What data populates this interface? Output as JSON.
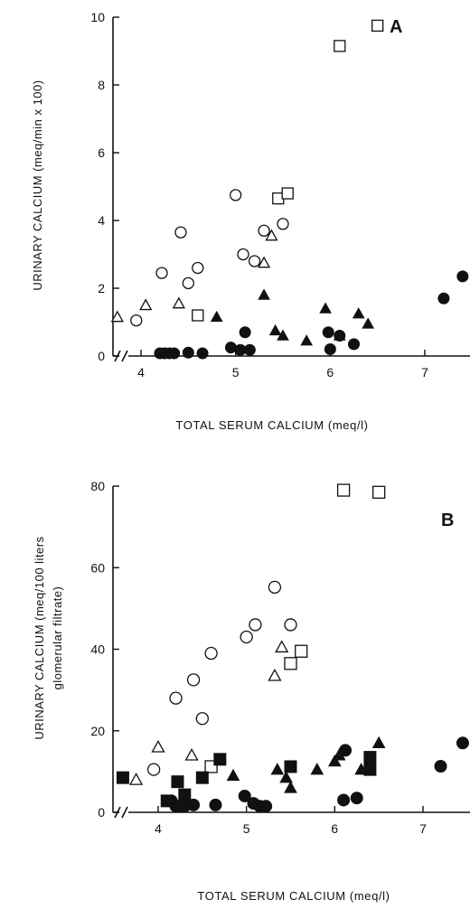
{
  "chart_data": [
    {
      "type": "scatter",
      "panel_label": "A",
      "xlabel": "TOTAL SERUM CALCIUM (meq/l)",
      "ylabel": "URINARY CALCIUM (meq/min x 100)",
      "xlim": [
        3.6,
        7.6
      ],
      "ylim": [
        0,
        10
      ],
      "xticks": [
        4,
        5,
        6,
        7
      ],
      "yticks": [
        0,
        2,
        4,
        6,
        8,
        10
      ],
      "axis_break": "x",
      "grid": false,
      "series": [
        {
          "marker": "open-circle",
          "points": [
            [
              3.95,
              1.05
            ],
            [
              4.22,
              2.45
            ],
            [
              4.42,
              3.65
            ],
            [
              4.5,
              2.15
            ],
            [
              4.6,
              2.6
            ],
            [
              5.0,
              4.75
            ],
            [
              5.08,
              3.0
            ],
            [
              5.3,
              3.7
            ],
            [
              5.2,
              2.8
            ],
            [
              5.5,
              3.9
            ]
          ]
        },
        {
          "marker": "open-triangle",
          "points": [
            [
              3.75,
              1.15
            ],
            [
              4.05,
              1.5
            ],
            [
              4.4,
              1.55
            ],
            [
              5.3,
              2.75
            ],
            [
              5.38,
              3.55
            ]
          ]
        },
        {
          "marker": "open-square",
          "points": [
            [
              4.6,
              1.2
            ],
            [
              5.45,
              4.65
            ],
            [
              5.55,
              4.8
            ],
            [
              6.1,
              9.15
            ],
            [
              6.5,
              9.75
            ]
          ]
        },
        {
          "marker": "filled-triangle",
          "points": [
            [
              4.8,
              1.15
            ],
            [
              5.3,
              1.8
            ],
            [
              5.42,
              0.75
            ],
            [
              5.5,
              0.6
            ],
            [
              5.75,
              0.45
            ],
            [
              5.95,
              1.4
            ],
            [
              6.1,
              0.6
            ],
            [
              6.3,
              1.25
            ],
            [
              6.4,
              0.95
            ]
          ]
        },
        {
          "marker": "filled-circle",
          "points": [
            [
              4.2,
              0.08
            ],
            [
              4.25,
              0.08
            ],
            [
              4.3,
              0.08
            ],
            [
              4.35,
              0.08
            ],
            [
              4.5,
              0.1
            ],
            [
              4.65,
              0.08
            ],
            [
              4.95,
              0.25
            ],
            [
              5.05,
              0.18
            ],
            [
              5.1,
              0.7
            ],
            [
              5.15,
              0.18
            ],
            [
              5.98,
              0.7
            ],
            [
              6.0,
              0.2
            ],
            [
              6.1,
              0.6
            ],
            [
              6.25,
              0.35
            ],
            [
              7.2,
              1.7
            ],
            [
              7.4,
              2.35
            ]
          ]
        }
      ]
    },
    {
      "type": "scatter",
      "panel_label": "B",
      "xlabel": "TOTAL SERUM CALCIUM (meq/l)",
      "ylabel_lines": [
        "URINARY CALCIUM (meq/100 liters",
        "glomerular filtrate)"
      ],
      "xlim": [
        3.6,
        7.6
      ],
      "ylim": [
        0,
        80
      ],
      "xticks": [
        4,
        5,
        6,
        7
      ],
      "yticks": [
        0,
        20,
        40,
        60,
        80
      ],
      "axis_break": "x",
      "grid": false,
      "series": [
        {
          "marker": "open-circle",
          "points": [
            [
              3.95,
              10.5
            ],
            [
              4.2,
              28
            ],
            [
              4.4,
              32.5
            ],
            [
              4.5,
              23
            ],
            [
              4.6,
              39
            ],
            [
              5.0,
              43
            ],
            [
              5.1,
              46
            ],
            [
              5.32,
              55.2
            ],
            [
              5.5,
              46
            ]
          ]
        },
        {
          "marker": "open-triangle",
          "points": [
            [
              3.75,
              8
            ],
            [
              4.0,
              16
            ],
            [
              4.38,
              14
            ],
            [
              5.32,
              33.5
            ],
            [
              5.4,
              40.5
            ]
          ]
        },
        {
          "marker": "open-square",
          "points": [
            [
              4.6,
              11.2
            ],
            [
              5.5,
              36.5
            ],
            [
              5.62,
              39.5
            ],
            [
              6.1,
              79
            ],
            [
              6.5,
              78.5
            ]
          ]
        },
        {
          "marker": "filled-square",
          "points": [
            [
              3.6,
              8.5
            ],
            [
              4.1,
              2.8
            ],
            [
              4.22,
              7.5
            ],
            [
              4.3,
              4.3
            ],
            [
              4.5,
              8.5
            ],
            [
              4.7,
              13
            ],
            [
              5.5,
              11.2
            ],
            [
              6.4,
              13.5
            ],
            [
              6.4,
              10.5
            ]
          ]
        },
        {
          "marker": "filled-triangle",
          "points": [
            [
              4.85,
              9
            ],
            [
              5.35,
              10.5
            ],
            [
              5.45,
              8.5
            ],
            [
              5.5,
              6
            ],
            [
              5.8,
              10.5
            ],
            [
              6.0,
              12.5
            ],
            [
              6.05,
              14
            ],
            [
              6.3,
              10.5
            ],
            [
              6.5,
              17
            ]
          ]
        },
        {
          "marker": "filled-circle",
          "points": [
            [
              4.15,
              2.8
            ],
            [
              4.2,
              1.5
            ],
            [
              4.25,
              1.5
            ],
            [
              4.3,
              1.5
            ],
            [
              4.4,
              1.8
            ],
            [
              4.65,
              1.8
            ],
            [
              4.98,
              4
            ],
            [
              5.08,
              2.2
            ],
            [
              5.15,
              1.5
            ],
            [
              5.22,
              1.5
            ],
            [
              6.1,
              3
            ],
            [
              6.12,
              15.2
            ],
            [
              6.25,
              3.5
            ],
            [
              7.2,
              11.3
            ],
            [
              7.45,
              17
            ]
          ]
        }
      ]
    }
  ]
}
